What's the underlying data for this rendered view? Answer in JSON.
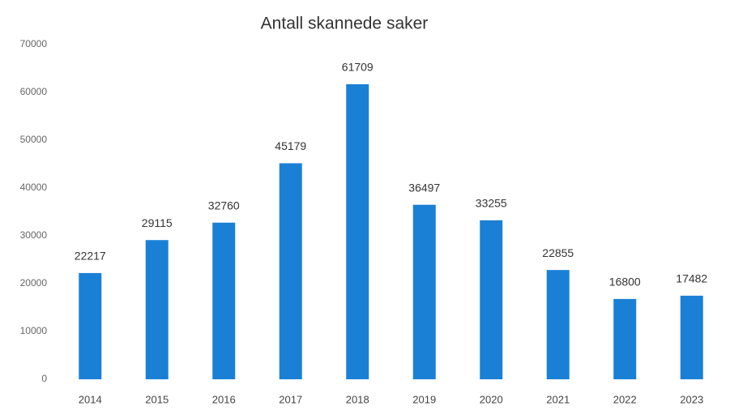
{
  "chart_data": {
    "type": "bar",
    "title": "Antall skannede saker",
    "categories": [
      "2014",
      "2015",
      "2016",
      "2017",
      "2018",
      "2019",
      "2020",
      "2021",
      "2022",
      "2023"
    ],
    "values": [
      22217,
      29115,
      32760,
      45179,
      61709,
      36497,
      33255,
      22855,
      16800,
      17482
    ],
    "color": "#1a80d6",
    "ylim": [
      0,
      70000
    ],
    "yticks": [
      0,
      10000,
      20000,
      30000,
      40000,
      50000,
      60000,
      70000
    ],
    "grid": false
  }
}
